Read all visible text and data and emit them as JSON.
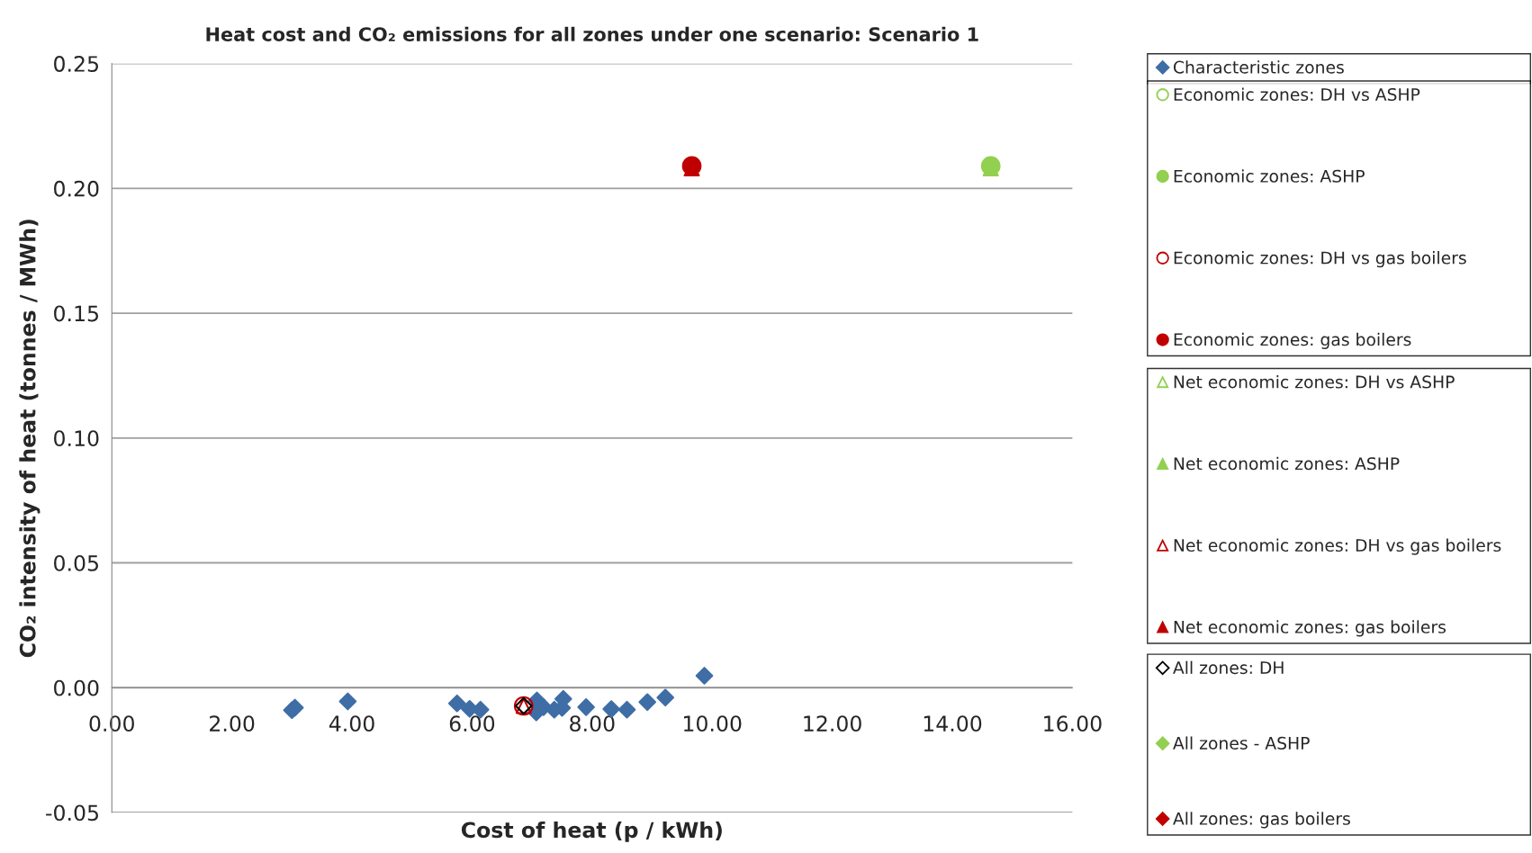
{
  "chart_data": {
    "type": "scatter",
    "title": "Heat cost and CO₂ emissions for all zones under one scenario: Scenario 1",
    "xlabel": "Cost of heat (p / kWh)",
    "ylabel": "CO₂ intensity of heat (tonnes / MWh)",
    "xlim": [
      0,
      16
    ],
    "ylim": [
      -0.05,
      0.25
    ],
    "xticks": [
      {
        "value": 0,
        "label": "0.00"
      },
      {
        "value": 2,
        "label": "2.00"
      },
      {
        "value": 4,
        "label": "4.00"
      },
      {
        "value": 6,
        "label": "6.00"
      },
      {
        "value": 8,
        "label": "8.00"
      },
      {
        "value": 10,
        "label": "10.00"
      },
      {
        "value": 12,
        "label": "12.00"
      },
      {
        "value": 14,
        "label": "14.00"
      },
      {
        "value": 16,
        "label": "16.00"
      }
    ],
    "yticks": [
      {
        "value": -0.05,
        "label": "-0.05"
      },
      {
        "value": 0,
        "label": "0.00"
      },
      {
        "value": 0.05,
        "label": "0.05"
      },
      {
        "value": 0.1,
        "label": "0.10"
      },
      {
        "value": 0.15,
        "label": "0.15"
      },
      {
        "value": 0.2,
        "label": "0.20"
      },
      {
        "value": 0.25,
        "label": "0.25"
      }
    ],
    "grid": "y",
    "legend": "right",
    "series": [
      {
        "name": "Characteristic zones",
        "color": "#3f6ea6",
        "marker": "diamond",
        "x": [
          3.0,
          3.05,
          3.93,
          5.75,
          5.96,
          6.14,
          7.08,
          7.07,
          7.19,
          7.37,
          7.52,
          7.5,
          7.9,
          8.32,
          8.58,
          8.92,
          9.22,
          9.87
        ],
        "values": [
          -0.009,
          -0.008,
          -0.0055,
          -0.0063,
          -0.0085,
          -0.0088,
          -0.0051,
          -0.0099,
          -0.0078,
          -0.0088,
          -0.0045,
          -0.0081,
          -0.0078,
          -0.0086,
          -0.0088,
          -0.0058,
          -0.004,
          0.0048
        ]
      },
      {
        "name": "Economic zones: DH vs ASHP",
        "color": "#92d050",
        "marker": "circle-open"
      },
      {
        "name": "Economic zones: ASHP",
        "color": "#92d050",
        "marker": "circle",
        "x": [
          14.64
        ],
        "values": [
          0.209
        ]
      },
      {
        "name": "Economic zones: DH vs gas boilers",
        "color": "#c00000",
        "marker": "circle-open",
        "x": [
          6.86
        ],
        "values": [
          -0.0073
        ]
      },
      {
        "name": "Economic zones: gas boilers",
        "color": "#c00000",
        "marker": "circle",
        "x": [
          9.66
        ],
        "values": [
          0.209
        ]
      },
      {
        "name": "Net economic zones: DH vs ASHP",
        "color": "#92d050",
        "marker": "triangle-open"
      },
      {
        "name": "Net economic zones: ASHP",
        "color": "#92d050",
        "marker": "triangle",
        "x": [
          14.64
        ],
        "values": [
          0.208
        ]
      },
      {
        "name": "Net economic zones: DH vs gas boilers",
        "color": "#c00000",
        "marker": "triangle-open",
        "x": [
          6.86
        ],
        "values": [
          -0.0073
        ]
      },
      {
        "name": "Net economic zones: gas boilers",
        "color": "#c00000",
        "marker": "triangle",
        "x": [
          9.66
        ],
        "values": [
          0.208
        ]
      },
      {
        "name": "All zones: DH",
        "color": "#000000",
        "marker": "diamond-open",
        "x": [
          6.86
        ],
        "values": [
          -0.0073
        ]
      },
      {
        "name": "All zones - ASHP",
        "color": "#92d050",
        "marker": "diamond"
      },
      {
        "name": "All zones: gas boilers",
        "color": "#c00000",
        "marker": "diamond"
      }
    ]
  }
}
